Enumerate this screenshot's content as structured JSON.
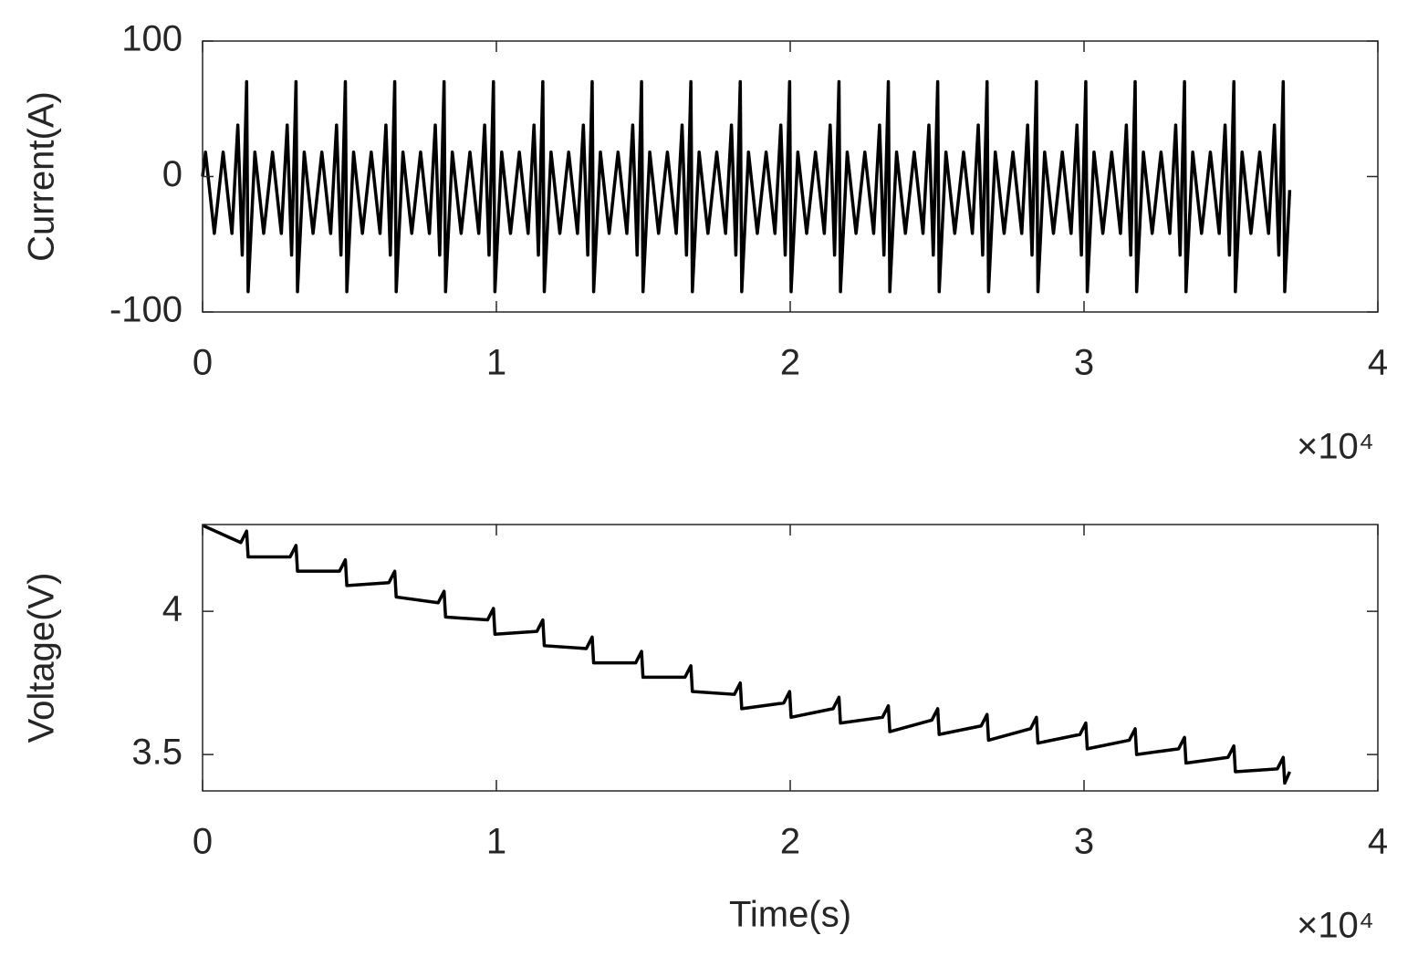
{
  "chart_data": [
    {
      "type": "line",
      "ylabel": "Current(A)",
      "x_exponent_label": "×10⁴",
      "color": "#000000",
      "xlim": [
        0,
        4
      ],
      "xticks": [
        0,
        1,
        2,
        3,
        4
      ],
      "ylim": [
        -100,
        100
      ],
      "yticks": [
        -100,
        0,
        100
      ],
      "x": [
        0,
        0.01,
        0.04,
        0.07,
        0.1,
        0.12,
        0.135,
        0.15,
        0.155,
        0.178,
        0.208,
        0.238,
        0.268,
        0.288,
        0.303,
        0.318,
        0.323,
        0.346,
        0.376,
        0.406,
        0.436,
        0.456,
        0.471,
        0.486,
        0.491,
        0.514,
        0.544,
        0.574,
        0.604,
        0.624,
        0.639,
        0.654,
        0.659,
        0.682,
        0.712,
        0.742,
        0.772,
        0.792,
        0.807,
        0.822,
        0.827,
        0.85,
        0.88,
        0.91,
        0.94,
        0.96,
        0.975,
        0.99,
        0.995,
        1.018,
        1.048,
        1.078,
        1.108,
        1.128,
        1.143,
        1.158,
        1.163,
        1.186,
        1.216,
        1.246,
        1.276,
        1.296,
        1.311,
        1.326,
        1.331,
        1.354,
        1.384,
        1.414,
        1.444,
        1.464,
        1.479,
        1.494,
        1.499,
        1.522,
        1.552,
        1.582,
        1.612,
        1.632,
        1.647,
        1.662,
        1.667,
        1.69,
        1.72,
        1.75,
        1.78,
        1.8,
        1.815,
        1.83,
        1.835,
        1.858,
        1.888,
        1.918,
        1.948,
        1.968,
        1.983,
        1.998,
        2.003,
        2.026,
        2.056,
        2.086,
        2.116,
        2.136,
        2.151,
        2.166,
        2.171,
        2.194,
        2.224,
        2.254,
        2.284,
        2.304,
        2.319,
        2.334,
        2.339,
        2.362,
        2.392,
        2.422,
        2.452,
        2.472,
        2.487,
        2.502,
        2.507,
        2.53,
        2.56,
        2.59,
        2.62,
        2.64,
        2.655,
        2.67,
        2.675,
        2.698,
        2.728,
        2.758,
        2.788,
        2.808,
        2.823,
        2.838,
        2.843,
        2.866,
        2.896,
        2.926,
        2.956,
        2.976,
        2.991,
        3.006,
        3.011,
        3.034,
        3.064,
        3.094,
        3.124,
        3.144,
        3.159,
        3.174,
        3.179,
        3.202,
        3.232,
        3.262,
        3.292,
        3.312,
        3.327,
        3.342,
        3.347,
        3.37,
        3.4,
        3.43,
        3.46,
        3.48,
        3.495,
        3.51,
        3.515,
        3.538,
        3.568,
        3.598,
        3.628,
        3.648,
        3.663,
        3.678,
        3.683,
        3.7
      ],
      "values": [
        0,
        18,
        -42,
        18,
        -42,
        38,
        -58,
        70,
        -85,
        18,
        -42,
        18,
        -42,
        38,
        -58,
        70,
        -85,
        18,
        -42,
        18,
        -42,
        38,
        -58,
        70,
        -85,
        18,
        -42,
        18,
        -42,
        38,
        -58,
        70,
        -85,
        18,
        -42,
        18,
        -42,
        38,
        -58,
        70,
        -85,
        18,
        -42,
        18,
        -42,
        38,
        -58,
        70,
        -85,
        18,
        -42,
        18,
        -42,
        38,
        -58,
        70,
        -85,
        18,
        -42,
        18,
        -42,
        38,
        -58,
        70,
        -85,
        18,
        -42,
        18,
        -42,
        38,
        -58,
        70,
        -85,
        18,
        -42,
        18,
        -42,
        38,
        -58,
        70,
        -85,
        18,
        -42,
        18,
        -42,
        38,
        -58,
        70,
        -85,
        18,
        -42,
        18,
        -42,
        38,
        -58,
        70,
        -85,
        18,
        -42,
        18,
        -42,
        38,
        -58,
        70,
        -85,
        18,
        -42,
        18,
        -42,
        38,
        -58,
        70,
        -85,
        18,
        -42,
        18,
        -42,
        38,
        -58,
        70,
        -85,
        18,
        -42,
        18,
        -42,
        38,
        -58,
        70,
        -85,
        18,
        -42,
        18,
        -42,
        38,
        -58,
        70,
        -85,
        18,
        -42,
        18,
        -42,
        38,
        -58,
        70,
        -85,
        18,
        -42,
        18,
        -42,
        38,
        -58,
        70,
        -85,
        18,
        -42,
        18,
        -42,
        38,
        -58,
        70,
        -85,
        18,
        -42,
        18,
        -42,
        38,
        -58,
        70,
        -85,
        18,
        -42,
        18,
        -42,
        38,
        -58,
        70,
        -85,
        -10
      ]
    },
    {
      "type": "line",
      "ylabel": "Voltage(V)",
      "xlabel": "Time(s)",
      "x_exponent_label": "×10⁴",
      "color": "#000000",
      "xlim": [
        0,
        4
      ],
      "xticks": [
        0,
        1,
        2,
        3,
        4
      ],
      "ylim": [
        3.373,
        4.303
      ],
      "yticks": [
        3.5,
        4
      ],
      "x": [
        0,
        0.13,
        0.15,
        0.155,
        0.298,
        0.318,
        0.323,
        0.466,
        0.486,
        0.491,
        0.634,
        0.654,
        0.659,
        0.802,
        0.822,
        0.827,
        0.97,
        0.99,
        0.995,
        1.138,
        1.158,
        1.163,
        1.306,
        1.326,
        1.331,
        1.474,
        1.494,
        1.499,
        1.642,
        1.662,
        1.667,
        1.81,
        1.83,
        1.835,
        1.978,
        1.998,
        2.003,
        2.146,
        2.166,
        2.171,
        2.314,
        2.334,
        2.339,
        2.482,
        2.502,
        2.507,
        2.65,
        2.67,
        2.675,
        2.818,
        2.838,
        2.843,
        2.986,
        3.006,
        3.011,
        3.154,
        3.174,
        3.179,
        3.322,
        3.342,
        3.347,
        3.49,
        3.51,
        3.515,
        3.658,
        3.678,
        3.683,
        3.7
      ],
      "values": [
        4.3,
        4.24,
        4.28,
        4.19,
        4.19,
        4.23,
        4.14,
        4.14,
        4.18,
        4.09,
        4.1,
        4.14,
        4.05,
        4.03,
        4.07,
        3.98,
        3.97,
        4.01,
        3.92,
        3.93,
        3.97,
        3.88,
        3.87,
        3.91,
        3.82,
        3.82,
        3.86,
        3.77,
        3.77,
        3.81,
        3.72,
        3.71,
        3.75,
        3.66,
        3.68,
        3.72,
        3.63,
        3.66,
        3.7,
        3.61,
        3.63,
        3.67,
        3.58,
        3.62,
        3.66,
        3.57,
        3.6,
        3.64,
        3.55,
        3.59,
        3.63,
        3.54,
        3.57,
        3.61,
        3.52,
        3.55,
        3.59,
        3.5,
        3.52,
        3.56,
        3.47,
        3.49,
        3.53,
        3.44,
        3.45,
        3.49,
        3.4,
        3.44
      ]
    }
  ]
}
